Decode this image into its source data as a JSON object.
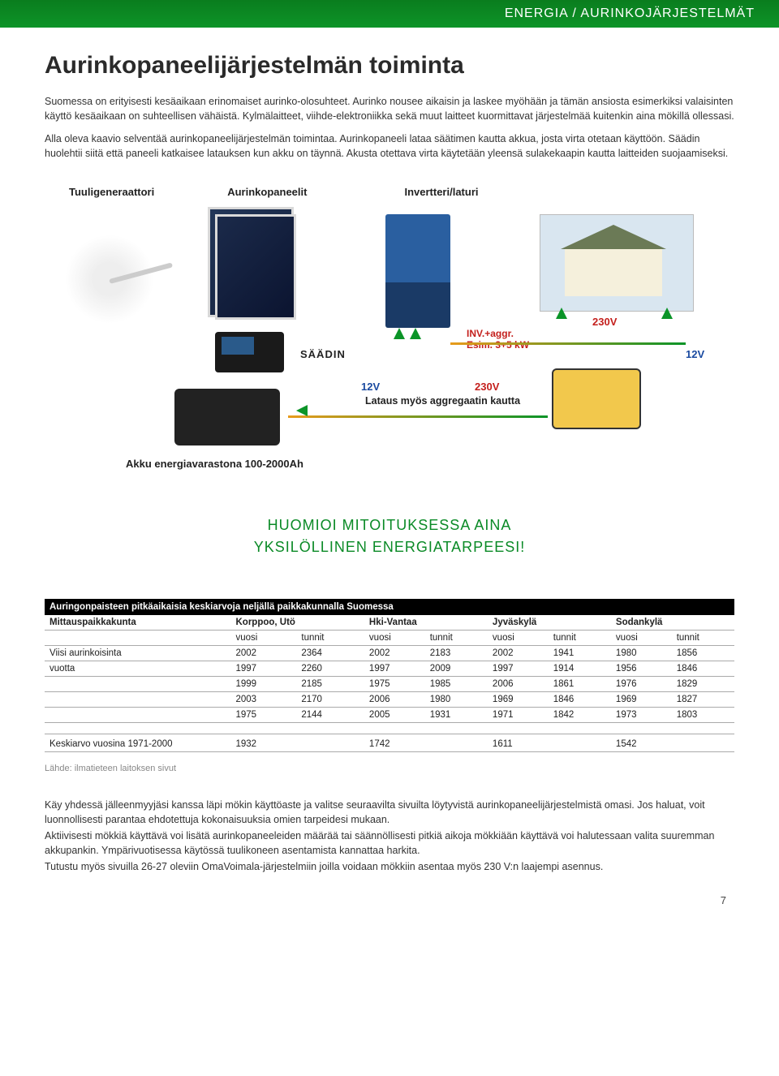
{
  "header": {
    "breadcrumb": "ENERGIA / AURINKOJÄRJESTELMÄT"
  },
  "title": "Aurinkopaneelijärjestelmän toiminta",
  "intro": {
    "p1": "Suomessa on erityisesti kesäaikaan erinomaiset aurinko-olosuhteet. Aurinko nousee aikaisin ja laskee myöhään ja tämän ansiosta esimerkiksi valaisinten käyttö kesäaikaan on suhteellisen vähäistä. Kylmälaitteet, viihde-elektroniikka sekä muut laitteet kuormittavat järjestelmää kuitenkin aina mökillä ollessasi.",
    "p2": "Alla oleva kaavio selventää aurinkopaneelijärjestelmän toimintaa. Aurinkopaneeli lataa säätimen kautta akkua, josta virta otetaan käyttöön. Säädin huolehtii siitä että paneeli katkaisee latauksen kun akku on täynnä. Akusta otettava virta käytetään yleensä sulakekaapin kautta laitteiden suojaamiseksi."
  },
  "diagram": {
    "labels": {
      "wind": "Tuuligeneraattori",
      "panel": "Aurinkopaneelit",
      "inverter": "Invertteri/laturi",
      "controller": "SÄÄDIN",
      "inv_line1": "INV.+aggr.",
      "inv_line2": "Esim. 3+5 kW",
      "v230": "230V",
      "v12": "12V",
      "v12b": "12V",
      "v230b": "230V",
      "charge_note": "Lataus myös aggregaatin kautta"
    },
    "battery_label": "Akku energiavarastona 100-2000Ah",
    "colors": {
      "red": "#c4201d",
      "blue": "#1a4aa0",
      "green_dark": "#0b9428",
      "orange": "#e89b1c"
    }
  },
  "callout": {
    "line1": "HUOMIOI MITOITUKSESSA AINA",
    "line2": "YKSILÖLLINEN ENERGIATARPEESI!"
  },
  "table": {
    "title": "Auringonpaisteen pitkäaikaisia keskiarvoja neljällä paikkakunnalla Suomessa",
    "header_row": [
      "Mittauspaikkakunta",
      "Korppoo, Utö",
      "Hki-Vantaa",
      "Jyväskylä",
      "Sodankylä"
    ],
    "sub_header": [
      "",
      "vuosi",
      "tunnit",
      "vuosi",
      "tunnit",
      "vuosi",
      "tunnit",
      "vuosi",
      "tunnit"
    ],
    "rows": [
      [
        "Viisi aurinkoisinta",
        "2002",
        "2364",
        "2002",
        "2183",
        "2002",
        "1941",
        "1980",
        "1856"
      ],
      [
        "vuotta",
        "1997",
        "2260",
        "1997",
        "2009",
        "1997",
        "1914",
        "1956",
        "1846"
      ],
      [
        "",
        "1999",
        "2185",
        "1975",
        "1985",
        "2006",
        "1861",
        "1976",
        "1829"
      ],
      [
        "",
        "2003",
        "2170",
        "2006",
        "1980",
        "1969",
        "1846",
        "1969",
        "1827"
      ],
      [
        "",
        "1975",
        "2144",
        "2005",
        "1931",
        "1971",
        "1842",
        "1973",
        "1803"
      ]
    ],
    "avg_row": [
      "Keskiarvo vuosina 1971-2000",
      "1932",
      "",
      "1742",
      "",
      "1611",
      "",
      "1542",
      ""
    ],
    "source": "Lähde: ilmatieteen laitoksen sivut"
  },
  "outro": {
    "p1": "Käy yhdessä jälleenmyyjäsi kanssa läpi mökin käyttöaste ja valitse seuraavilta sivuilta löytyvistä aurinkopaneelijärjestelmistä omasi. Jos haluat, voit luonnollisesti parantaa ehdotettuja kokonaisuuksia omien tarpeidesi mukaan.",
    "p2": "Aktiivisesti mökkiä käyttävä voi lisätä aurinkopaneeleiden määrää tai säännöllisesti pitkiä aikoja mökkiään käyttävä voi halutessaan valita suuremman akkupankin. Ympärivuotisessa käytössä tuulikoneen asentamista kannattaa harkita.",
    "p3": "Tutustu myös sivuilla 26-27 oleviin OmaVoimala-järjestelmiin joilla voidaan mökkiin asentaa myös 230 V:n laajempi asennus."
  },
  "page_number": "7"
}
